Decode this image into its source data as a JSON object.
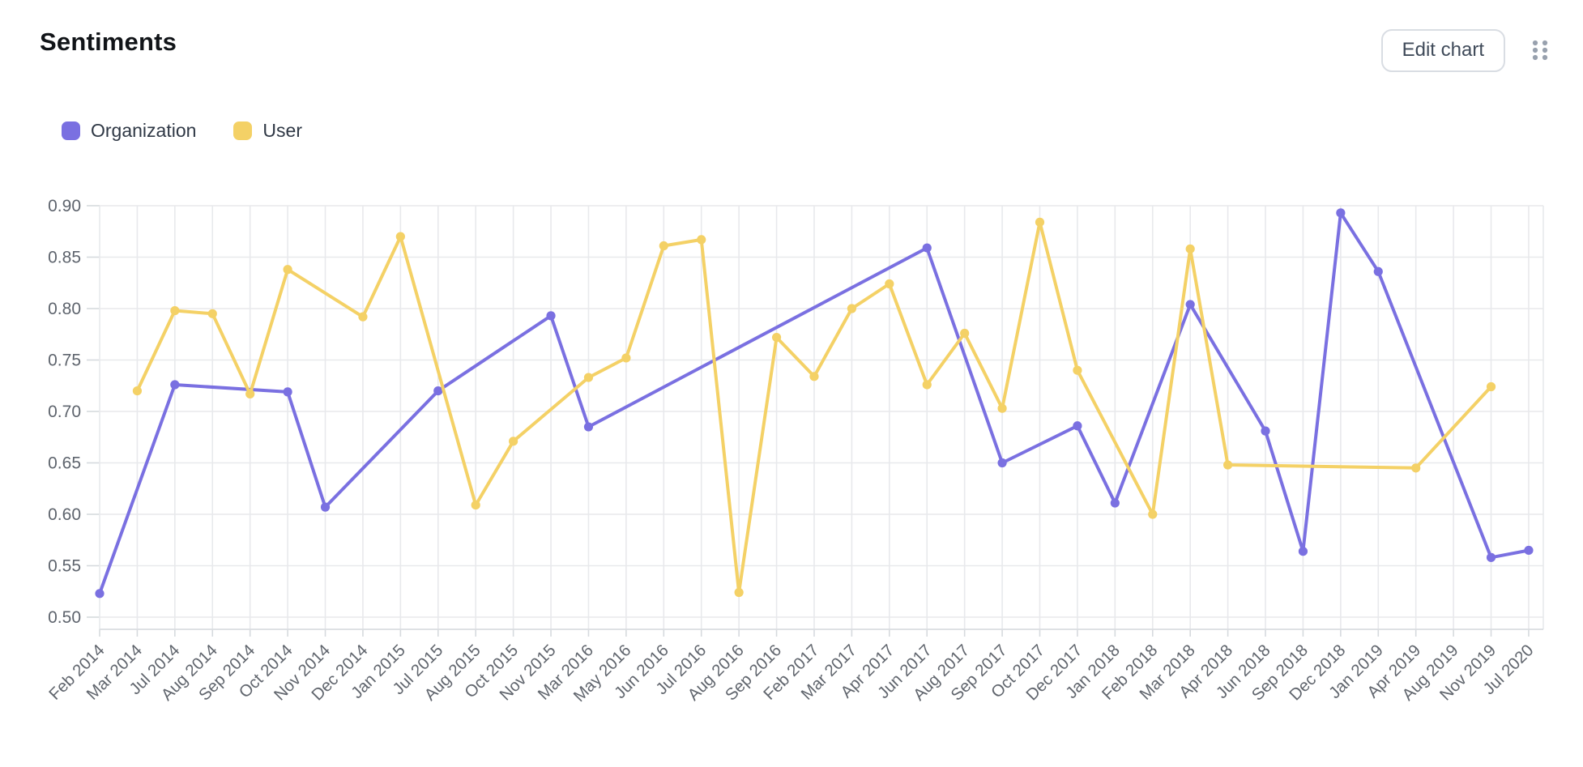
{
  "header": {
    "title": "Sentiments",
    "edit_button_label": "Edit chart"
  },
  "icons": {
    "drag_handle": "grid-dots-2x3",
    "drag_handle_color": "#98a1ae"
  },
  "chart_data": {
    "type": "line",
    "title": "Sentiments",
    "legend_position": "top-left",
    "grid": true,
    "ylim": [
      0.5,
      0.9
    ],
    "yticks": [
      0.9,
      0.85,
      0.8,
      0.75,
      0.7,
      0.65,
      0.6,
      0.55,
      0.5
    ],
    "ytick_labels": [
      "0.90",
      "0.85",
      "0.80",
      "0.75",
      "0.70",
      "0.65",
      "0.60",
      "0.55",
      "0.50"
    ],
    "categories": [
      "Feb 2014",
      "Mar 2014",
      "Jul 2014",
      "Aug 2014",
      "Sep 2014",
      "Oct 2014",
      "Nov 2014",
      "Dec 2014",
      "Jan 2015",
      "Jul 2015",
      "Aug 2015",
      "Oct 2015",
      "Nov 2015",
      "Mar 2016",
      "May 2016",
      "Jun 2016",
      "Jul 2016",
      "Aug 2016",
      "Sep 2016",
      "Feb 2017",
      "Mar 2017",
      "Apr 2017",
      "Jun 2017",
      "Aug 2017",
      "Sep 2017",
      "Oct 2017",
      "Dec 2017",
      "Jan 2018",
      "Feb 2018",
      "Mar 2018",
      "Apr 2018",
      "Jun 2018",
      "Sep 2018",
      "Dec 2018",
      "Jan 2019",
      "Apr 2019",
      "Aug 2019",
      "Nov 2019",
      "Jul 2020"
    ],
    "series": [
      {
        "name": "Organization",
        "color": "#7a70e1",
        "values": [
          0.523,
          null,
          0.726,
          null,
          null,
          0.719,
          0.607,
          null,
          null,
          0.72,
          null,
          null,
          0.793,
          0.685,
          null,
          null,
          null,
          null,
          null,
          null,
          null,
          null,
          0.859,
          null,
          0.65,
          null,
          0.686,
          0.611,
          null,
          0.804,
          null,
          0.681,
          0.564,
          0.893,
          0.836,
          null,
          null,
          0.558,
          0.565
        ]
      },
      {
        "name": "User",
        "color": "#f4d166",
        "values": [
          null,
          0.72,
          0.798,
          0.795,
          0.717,
          0.838,
          null,
          0.792,
          0.87,
          null,
          0.609,
          0.671,
          null,
          0.733,
          0.752,
          0.861,
          0.867,
          0.524,
          0.772,
          0.734,
          0.8,
          0.824,
          0.726,
          0.776,
          0.703,
          0.884,
          0.74,
          null,
          0.6,
          0.858,
          0.648,
          null,
          null,
          null,
          null,
          0.645,
          null,
          0.724,
          null
        ]
      }
    ]
  }
}
